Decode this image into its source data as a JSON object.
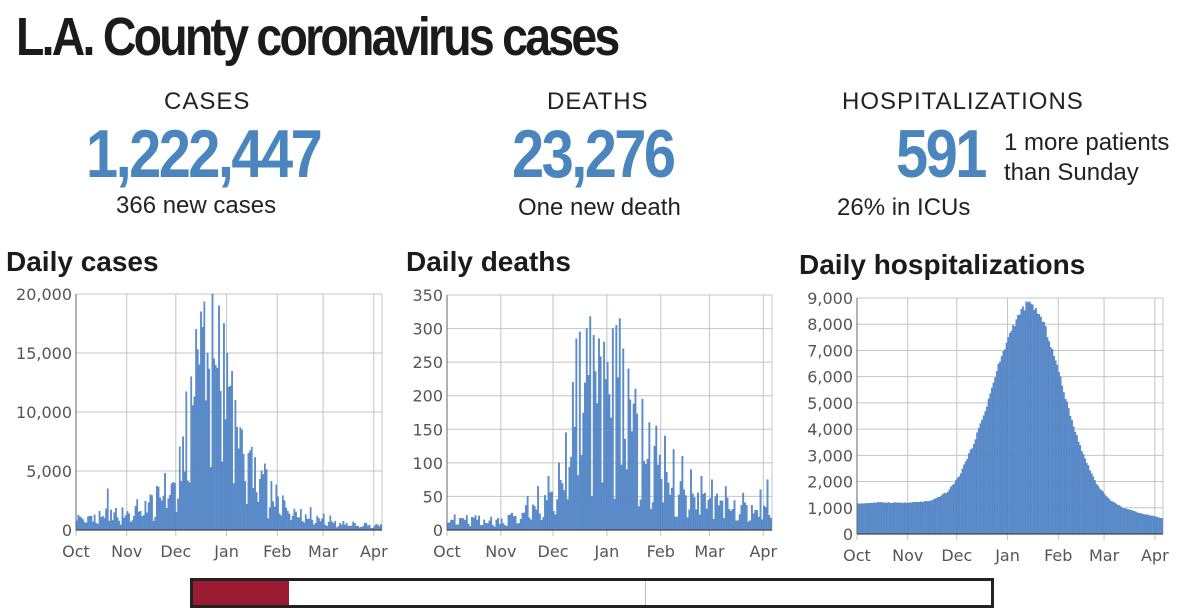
{
  "title": "L.A. County coronavirus cases",
  "stats": {
    "cases": {
      "label": "CASES",
      "value": "1,222,447",
      "sub": "366 new cases"
    },
    "deaths": {
      "label": "DEATHS",
      "value": "23,276",
      "sub": "One new death"
    },
    "hospitalizations": {
      "label": "HOSPITALIZATIONS",
      "value": "591",
      "sub": "26% in ICUs",
      "note": "1 more patients than Sunday"
    }
  },
  "colors": {
    "accent": "#4a86bd",
    "bar": "#5d8fcf",
    "strip": "#9b1b32"
  },
  "chart_data": [
    {
      "type": "bar",
      "title": "Daily cases",
      "x_ticks": [
        "Oct",
        "Nov",
        "Dec",
        "Jan",
        "Feb",
        "Mar",
        "Apr"
      ],
      "y_ticks": [
        "0",
        "5,000",
        "10,000",
        "15,000",
        "20,000"
      ],
      "ylim": [
        0,
        20000
      ],
      "grid": true,
      "x_range": [
        "Oct 1",
        "Apr 5"
      ],
      "segments": [
        [
          0,
          1100
        ],
        [
          15,
          1300
        ],
        [
          30,
          1500
        ],
        [
          45,
          2500
        ],
        [
          55,
          3200
        ],
        [
          62,
          4500
        ],
        [
          66,
          8000
        ],
        [
          70,
          11000
        ],
        [
          74,
          13500
        ],
        [
          78,
          14500
        ],
        [
          84,
          13500
        ],
        [
          90,
          12500
        ],
        [
          95,
          11000
        ],
        [
          100,
          8500
        ],
        [
          105,
          6500
        ],
        [
          112,
          5000
        ],
        [
          120,
          3000
        ],
        [
          130,
          2200
        ],
        [
          140,
          1600
        ],
        [
          150,
          1100
        ],
        [
          160,
          700
        ],
        [
          170,
          500
        ],
        [
          186,
          400
        ]
      ],
      "peaks": [
        [
          19,
          3500
        ],
        [
          54,
          4800
        ],
        [
          70,
          13000
        ],
        [
          73,
          17000
        ],
        [
          75,
          14000
        ],
        [
          76,
          18500
        ],
        [
          80,
          15000
        ],
        [
          83,
          20000
        ],
        [
          84,
          14500
        ],
        [
          87,
          19000
        ],
        [
          90,
          17500
        ],
        [
          92,
          15000
        ],
        [
          97,
          11000
        ],
        [
          101,
          8500
        ],
        [
          105,
          6500
        ],
        [
          112,
          4300
        ]
      ]
    },
    {
      "type": "bar",
      "title": "Daily deaths",
      "x_ticks": [
        "Oct",
        "Nov",
        "Dec",
        "Jan",
        "Feb",
        "Mar",
        "Apr"
      ],
      "y_ticks": [
        "0",
        "50",
        "100",
        "150",
        "200",
        "250",
        "300",
        "350"
      ],
      "ylim": [
        0,
        350
      ],
      "grid": true,
      "x_range": [
        "Oct 1",
        "Apr 5"
      ],
      "segments": [
        [
          0,
          18
        ],
        [
          30,
          15
        ],
        [
          45,
          28
        ],
        [
          60,
          45
        ],
        [
          70,
          90
        ],
        [
          78,
          170
        ],
        [
          84,
          200
        ],
        [
          92,
          190
        ],
        [
          100,
          170
        ],
        [
          108,
          140
        ],
        [
          116,
          115
        ],
        [
          124,
          90
        ],
        [
          132,
          70
        ],
        [
          140,
          55
        ],
        [
          150,
          45
        ],
        [
          165,
          35
        ],
        [
          186,
          25
        ]
      ],
      "peaks": [
        [
          46,
          50
        ],
        [
          52,
          65
        ],
        [
          58,
          80
        ],
        [
          64,
          100
        ],
        [
          68,
          145
        ],
        [
          72,
          220
        ],
        [
          74,
          285
        ],
        [
          76,
          295
        ],
        [
          80,
          300
        ],
        [
          82,
          318
        ],
        [
          84,
          290
        ],
        [
          87,
          285
        ],
        [
          90,
          280
        ],
        [
          92,
          250
        ],
        [
          95,
          300
        ],
        [
          97,
          305
        ],
        [
          99,
          315
        ],
        [
          101,
          270
        ],
        [
          104,
          240
        ],
        [
          108,
          210
        ],
        [
          112,
          195
        ],
        [
          116,
          160
        ],
        [
          120,
          155
        ],
        [
          125,
          140
        ],
        [
          130,
          120
        ],
        [
          135,
          110
        ],
        [
          140,
          90
        ],
        [
          146,
          80
        ],
        [
          152,
          75
        ],
        [
          160,
          65
        ],
        [
          170,
          55
        ],
        [
          180,
          60
        ],
        [
          184,
          75
        ]
      ]
    },
    {
      "type": "bar",
      "title": "Daily hospitalizations",
      "x_ticks": [
        "Oct",
        "Nov",
        "Dec",
        "Jan",
        "Feb",
        "Mar",
        "Apr"
      ],
      "y_ticks": [
        "0",
        "1,000",
        "2,000",
        "3,000",
        "4,000",
        "5,000",
        "6,000",
        "7,000",
        "8,000",
        "9,000"
      ],
      "ylim": [
        0,
        9000
      ],
      "grid": true,
      "x_range": [
        "Oct 1",
        "Apr 5"
      ],
      "segments": [
        [
          0,
          1150
        ],
        [
          15,
          1200
        ],
        [
          30,
          1180
        ],
        [
          45,
          1250
        ],
        [
          55,
          1600
        ],
        [
          62,
          2200
        ],
        [
          70,
          3300
        ],
        [
          78,
          4700
        ],
        [
          86,
          6400
        ],
        [
          94,
          7800
        ],
        [
          100,
          8500
        ],
        [
          104,
          8800
        ],
        [
          108,
          8650
        ],
        [
          114,
          8000
        ],
        [
          122,
          6400
        ],
        [
          130,
          4500
        ],
        [
          138,
          3000
        ],
        [
          146,
          1900
        ],
        [
          154,
          1300
        ],
        [
          162,
          1000
        ],
        [
          172,
          800
        ],
        [
          186,
          600
        ]
      ],
      "peaks": []
    }
  ]
}
